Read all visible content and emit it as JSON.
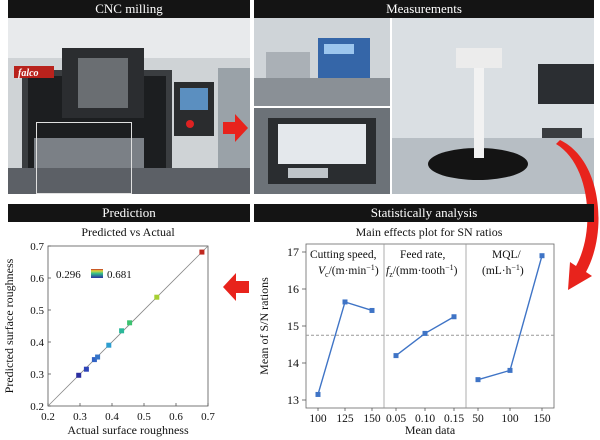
{
  "panels": {
    "cnc": "CNC milling",
    "measurements": "Measurements",
    "prediction": "Prediction",
    "statistical": "Statistically analysis"
  },
  "machine_brand": "falco",
  "scatter": {
    "title": "Predicted vs Actual",
    "xlabel": "Actual surface roughness",
    "ylabel": "Predicted surface roughness",
    "colorbar_min": "0.296",
    "colorbar_max": "0.681"
  },
  "sn": {
    "title": "Main effects plot for SN ratios",
    "ylabel": "Mean of S/N rations",
    "xlabel": "Mean data",
    "factor1": {
      "line1": "Cutting speed,",
      "line2a": "V",
      "line2sub": "c",
      "line2b": "/(m·min",
      "line2sup": "−1",
      "line2c": ")"
    },
    "factor2": {
      "line1": "Feed rate,",
      "line2a": "f",
      "line2sub": "z",
      "line2b": "/(mm·tooth",
      "line2sup": "−1",
      "line2c": ")"
    },
    "factor3": {
      "line1": "MQL/",
      "line2a": "(mL·h",
      "line2sup": "−1",
      "line2c": ")"
    }
  },
  "colors": {
    "accent_arrow": "#e8231c",
    "line": "#3f74c6",
    "header": "#141414"
  },
  "chart_data": [
    {
      "type": "scatter",
      "title": "Predicted vs Actual",
      "xlabel": "Actual surface roughness",
      "ylabel": "Predicted surface roughness",
      "xlim": [
        0.2,
        0.7
      ],
      "ylim": [
        0.2,
        0.7
      ],
      "xticks": [
        "0.2",
        "0.3",
        "0.4",
        "0.5",
        "0.6",
        "0.7"
      ],
      "yticks": [
        "0.2",
        "0.3",
        "0.4",
        "0.5",
        "0.6",
        "0.7"
      ],
      "points": [
        {
          "x": 0.296,
          "y": 0.296,
          "color": "#2b2fa0"
        },
        {
          "x": 0.32,
          "y": 0.315,
          "color": "#2e44b8"
        },
        {
          "x": 0.345,
          "y": 0.345,
          "color": "#3162c4"
        },
        {
          "x": 0.355,
          "y": 0.353,
          "color": "#3574c8"
        },
        {
          "x": 0.39,
          "y": 0.39,
          "color": "#2d9ed0"
        },
        {
          "x": 0.43,
          "y": 0.435,
          "color": "#2bb89a"
        },
        {
          "x": 0.455,
          "y": 0.46,
          "color": "#3cc270"
        },
        {
          "x": 0.54,
          "y": 0.54,
          "color": "#a6cf32"
        },
        {
          "x": 0.681,
          "y": 0.681,
          "color": "#c0291f"
        }
      ],
      "fit_line": [
        [
          0.2,
          0.2
        ],
        [
          0.7,
          0.7
        ]
      ]
    },
    {
      "type": "line",
      "title": "Main effects plot for SN ratios",
      "xlabel": "Mean data",
      "ylabel": "Mean of S/N rations",
      "ylim": [
        13,
        17
      ],
      "yticks": [
        "13",
        "14",
        "15",
        "16",
        "17"
      ],
      "reference_line": 14.75,
      "series": [
        {
          "factor": "cutting_speed",
          "levels": [
            "100",
            "125",
            "150"
          ],
          "values": [
            13.15,
            15.65,
            15.42
          ]
        },
        {
          "factor": "feed_rate",
          "levels": [
            "0.05",
            "0.10",
            "0.15"
          ],
          "values": [
            14.2,
            14.8,
            15.25
          ]
        },
        {
          "factor": "mql",
          "levels": [
            "50",
            "100",
            "150"
          ],
          "values": [
            13.55,
            13.8,
            16.9
          ]
        }
      ]
    }
  ]
}
